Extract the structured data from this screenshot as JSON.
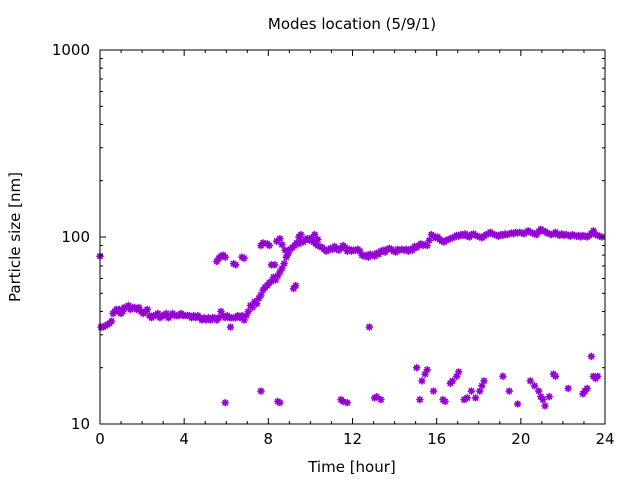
{
  "chart_data": {
    "type": "scatter",
    "title": "Modes location (5/9/1)",
    "xlabel": "Time [hour]",
    "ylabel": "Particle size [nm]",
    "xlim": [
      0,
      24
    ],
    "ylim": [
      10,
      1000
    ],
    "yscale": "log",
    "xticks": [
      0,
      4,
      8,
      12,
      16,
      20,
      24
    ],
    "xtick_labels": [
      "0",
      "4",
      "8",
      "12",
      "16",
      "20",
      "24"
    ],
    "yticks": [
      10,
      100,
      1000
    ],
    "ytick_labels": [
      "10",
      "100",
      "1000"
    ],
    "grid": false,
    "legend": "none",
    "marker_color": "#9400d3",
    "series": [
      {
        "points": [
          [
            0.0,
            79
          ],
          [
            0.05,
            33
          ],
          [
            0.15,
            33
          ],
          [
            0.25,
            33.5
          ],
          [
            0.35,
            34
          ],
          [
            0.45,
            34.5
          ],
          [
            0.55,
            35.5
          ],
          [
            0.62,
            39
          ],
          [
            0.7,
            40
          ],
          [
            0.78,
            41
          ],
          [
            0.85,
            40
          ],
          [
            0.92,
            41
          ],
          [
            1.0,
            39
          ],
          [
            1.08,
            40
          ],
          [
            1.15,
            42
          ],
          [
            1.25,
            42
          ],
          [
            1.35,
            43
          ],
          [
            1.45,
            41
          ],
          [
            1.55,
            42
          ],
          [
            1.65,
            42
          ],
          [
            1.75,
            41
          ],
          [
            1.85,
            42
          ],
          [
            1.95,
            40
          ],
          [
            2.05,
            39
          ],
          [
            2.15,
            40
          ],
          [
            2.25,
            41
          ],
          [
            2.35,
            38
          ],
          [
            2.45,
            37
          ],
          [
            2.55,
            38
          ],
          [
            2.65,
            38
          ],
          [
            2.75,
            39
          ],
          [
            2.85,
            37
          ],
          [
            2.95,
            38
          ],
          [
            3.05,
            38
          ],
          [
            3.15,
            39
          ],
          [
            3.25,
            37
          ],
          [
            3.35,
            38
          ],
          [
            3.45,
            39
          ],
          [
            3.55,
            38
          ],
          [
            3.65,
            38
          ],
          [
            3.75,
            38
          ],
          [
            3.85,
            39
          ],
          [
            3.95,
            38
          ],
          [
            4.05,
            38
          ],
          [
            4.15,
            38
          ],
          [
            4.25,
            38
          ],
          [
            4.35,
            37
          ],
          [
            4.45,
            38
          ],
          [
            4.55,
            37
          ],
          [
            4.65,
            38
          ],
          [
            4.75,
            37
          ],
          [
            4.85,
            36
          ],
          [
            4.95,
            37
          ],
          [
            5.05,
            36
          ],
          [
            5.15,
            37
          ],
          [
            5.25,
            36
          ],
          [
            5.35,
            37
          ],
          [
            5.45,
            37
          ],
          [
            5.55,
            36
          ],
          [
            5.65,
            37
          ],
          [
            5.75,
            40
          ],
          [
            5.85,
            38
          ],
          [
            5.95,
            37
          ],
          [
            6.05,
            38
          ],
          [
            6.15,
            37
          ],
          [
            6.25,
            37
          ],
          [
            6.35,
            37
          ],
          [
            6.45,
            37
          ],
          [
            6.55,
            38
          ],
          [
            6.65,
            37
          ],
          [
            6.75,
            38
          ],
          [
            6.85,
            36
          ],
          [
            6.95,
            38
          ],
          [
            7.05,
            40
          ],
          [
            7.15,
            43
          ],
          [
            7.25,
            42
          ],
          [
            7.35,
            45
          ],
          [
            7.45,
            44
          ],
          [
            7.55,
            47
          ],
          [
            7.65,
            49
          ],
          [
            7.75,
            52
          ],
          [
            7.85,
            54
          ],
          [
            7.95,
            55
          ],
          [
            8.05,
            57
          ],
          [
            8.15,
            58
          ],
          [
            8.25,
            61
          ],
          [
            8.35,
            59
          ],
          [
            8.45,
            62
          ],
          [
            8.55,
            65
          ],
          [
            8.65,
            68
          ],
          [
            8.75,
            72
          ],
          [
            8.85,
            78
          ],
          [
            8.95,
            82
          ],
          [
            9.05,
            86
          ],
          [
            9.15,
            88
          ],
          [
            9.25,
            90
          ],
          [
            9.35,
            93
          ],
          [
            9.45,
            92
          ],
          [
            9.55,
            95
          ],
          [
            9.65,
            94
          ],
          [
            9.75,
            97
          ],
          [
            9.85,
            98
          ],
          [
            9.95,
            96
          ],
          [
            10.05,
            99
          ],
          [
            10.15,
            94
          ],
          [
            10.25,
            92
          ],
          [
            10.35,
            90
          ],
          [
            10.45,
            89
          ],
          [
            10.55,
            88
          ],
          [
            10.65,
            86
          ],
          [
            10.75,
            84
          ],
          [
            10.85,
            85
          ],
          [
            10.95,
            87
          ],
          [
            11.05,
            86
          ],
          [
            11.15,
            89
          ],
          [
            11.25,
            86
          ],
          [
            11.35,
            85
          ],
          [
            11.45,
            87
          ],
          [
            11.55,
            90
          ],
          [
            11.65,
            88
          ],
          [
            11.75,
            84
          ],
          [
            11.85,
            86
          ],
          [
            11.95,
            84
          ],
          [
            12.05,
            85
          ],
          [
            12.15,
            85
          ],
          [
            12.25,
            86
          ],
          [
            12.35,
            84
          ],
          [
            12.45,
            80
          ],
          [
            12.55,
            79
          ],
          [
            12.65,
            80
          ],
          [
            12.75,
            78
          ],
          [
            12.85,
            81
          ],
          [
            12.95,
            80
          ],
          [
            13.05,
            79
          ],
          [
            13.15,
            82
          ],
          [
            13.25,
            81
          ],
          [
            13.35,
            84
          ],
          [
            13.45,
            85
          ],
          [
            13.55,
            83
          ],
          [
            13.65,
            86
          ],
          [
            13.75,
            87
          ],
          [
            13.85,
            86
          ],
          [
            13.95,
            84
          ],
          [
            14.05,
            83
          ],
          [
            14.15,
            86
          ],
          [
            14.25,
            85
          ],
          [
            14.35,
            86
          ],
          [
            14.45,
            85
          ],
          [
            14.55,
            86
          ],
          [
            14.65,
            84
          ],
          [
            14.75,
            86
          ],
          [
            14.85,
            85
          ],
          [
            14.95,
            89
          ],
          [
            15.05,
            88
          ],
          [
            15.15,
            90
          ],
          [
            15.25,
            92
          ],
          [
            15.35,
            90
          ],
          [
            15.45,
            91
          ],
          [
            15.55,
            90
          ],
          [
            15.65,
            96
          ],
          [
            15.75,
            103
          ],
          [
            15.85,
            101
          ],
          [
            15.95,
            99
          ],
          [
            16.05,
            100
          ],
          [
            16.15,
            97
          ],
          [
            16.25,
            95
          ],
          [
            16.35,
            94
          ],
          [
            16.45,
            96
          ],
          [
            16.55,
            97
          ],
          [
            16.65,
            98
          ],
          [
            16.75,
            99
          ],
          [
            16.85,
            100
          ],
          [
            16.95,
            102
          ],
          [
            17.05,
            101
          ],
          [
            17.15,
            103
          ],
          [
            17.25,
            102
          ],
          [
            17.35,
            104
          ],
          [
            17.45,
            101
          ],
          [
            17.55,
            100
          ],
          [
            17.65,
            103
          ],
          [
            17.75,
            104
          ],
          [
            17.85,
            102
          ],
          [
            17.95,
            101
          ],
          [
            18.05,
            100
          ],
          [
            18.15,
            99
          ],
          [
            18.25,
            101
          ],
          [
            18.35,
            103
          ],
          [
            18.45,
            104
          ],
          [
            18.55,
            106
          ],
          [
            18.65,
            104
          ],
          [
            18.75,
            103
          ],
          [
            18.85,
            102
          ],
          [
            18.95,
            101
          ],
          [
            19.05,
            103
          ],
          [
            19.15,
            102
          ],
          [
            19.25,
            104
          ],
          [
            19.35,
            103
          ],
          [
            19.45,
            104
          ],
          [
            19.55,
            105
          ],
          [
            19.65,
            104
          ],
          [
            19.75,
            106
          ],
          [
            19.85,
            105
          ],
          [
            19.95,
            106
          ],
          [
            20.05,
            105
          ],
          [
            20.15,
            104
          ],
          [
            20.25,
            106
          ],
          [
            20.35,
            108
          ],
          [
            20.45,
            106
          ],
          [
            20.55,
            105
          ],
          [
            20.65,
            104
          ],
          [
            20.75,
            103
          ],
          [
            20.85,
            107
          ],
          [
            20.95,
            110
          ],
          [
            21.05,
            108
          ],
          [
            21.15,
            107
          ],
          [
            21.25,
            105
          ],
          [
            21.35,
            104
          ],
          [
            21.45,
            103
          ],
          [
            21.55,
            104
          ],
          [
            21.65,
            106
          ],
          [
            21.75,
            103
          ],
          [
            21.85,
            102
          ],
          [
            21.95,
            104
          ],
          [
            22.05,
            102
          ],
          [
            22.15,
            103
          ],
          [
            22.25,
            102
          ],
          [
            22.35,
            101
          ],
          [
            22.45,
            103
          ],
          [
            22.55,
            102
          ],
          [
            22.65,
            101
          ],
          [
            22.75,
            102
          ],
          [
            22.85,
            100
          ],
          [
            22.95,
            102
          ],
          [
            23.05,
            101
          ],
          [
            23.15,
            100
          ],
          [
            23.25,
            102
          ],
          [
            23.35,
            104
          ],
          [
            23.45,
            108
          ],
          [
            23.55,
            103
          ],
          [
            23.65,
            102
          ],
          [
            23.75,
            101
          ],
          [
            23.85,
            100
          ],
          [
            5.55,
            74
          ],
          [
            5.65,
            77
          ],
          [
            5.75,
            79
          ],
          [
            5.85,
            80
          ],
          [
            5.95,
            78
          ],
          [
            6.35,
            72
          ],
          [
            6.45,
            71
          ],
          [
            6.75,
            78
          ],
          [
            6.85,
            77
          ],
          [
            7.65,
            90
          ],
          [
            7.75,
            93
          ],
          [
            7.95,
            92
          ],
          [
            8.05,
            90
          ],
          [
            8.15,
            71
          ],
          [
            8.3,
            71
          ],
          [
            8.4,
            95
          ],
          [
            8.55,
            98
          ],
          [
            8.65,
            91
          ],
          [
            8.8,
            85
          ],
          [
            8.9,
            80
          ],
          [
            9.2,
            53
          ],
          [
            9.3,
            55
          ],
          [
            9.45,
            100
          ],
          [
            9.55,
            103
          ],
          [
            10.2,
            103
          ],
          [
            10.35,
            97
          ],
          [
            6.2,
            33
          ],
          [
            12.8,
            33
          ],
          [
            5.95,
            13
          ],
          [
            7.65,
            15
          ],
          [
            8.45,
            13.2
          ],
          [
            8.55,
            13
          ],
          [
            11.45,
            13.5
          ],
          [
            11.55,
            13.2
          ],
          [
            11.75,
            13
          ],
          [
            13.05,
            13.8
          ],
          [
            13.15,
            14
          ],
          [
            13.35,
            13.5
          ],
          [
            15.05,
            20
          ],
          [
            15.2,
            13.5
          ],
          [
            15.3,
            17
          ],
          [
            15.45,
            18.5
          ],
          [
            15.55,
            19.5
          ],
          [
            15.85,
            15
          ],
          [
            16.3,
            13.5
          ],
          [
            16.4,
            13.2
          ],
          [
            16.65,
            16.5
          ],
          [
            16.75,
            17
          ],
          [
            16.95,
            18
          ],
          [
            17.05,
            19
          ],
          [
            17.3,
            13.5
          ],
          [
            17.45,
            13.8
          ],
          [
            17.65,
            15
          ],
          [
            17.85,
            13.8
          ],
          [
            18.05,
            15
          ],
          [
            18.15,
            16
          ],
          [
            18.25,
            17
          ],
          [
            19.15,
            18
          ],
          [
            19.45,
            15
          ],
          [
            19.85,
            12.8
          ],
          [
            20.45,
            17
          ],
          [
            20.65,
            16
          ],
          [
            20.85,
            15
          ],
          [
            20.95,
            14
          ],
          [
            21.05,
            13.5
          ],
          [
            21.15,
            12.5
          ],
          [
            21.35,
            14
          ],
          [
            21.55,
            18.5
          ],
          [
            21.65,
            18
          ],
          [
            22.25,
            15.5
          ],
          [
            22.95,
            14.5
          ],
          [
            23.05,
            15
          ],
          [
            23.15,
            15.5
          ],
          [
            23.35,
            23
          ],
          [
            23.45,
            18
          ],
          [
            23.55,
            17.5
          ],
          [
            23.65,
            18
          ]
        ]
      }
    ]
  }
}
